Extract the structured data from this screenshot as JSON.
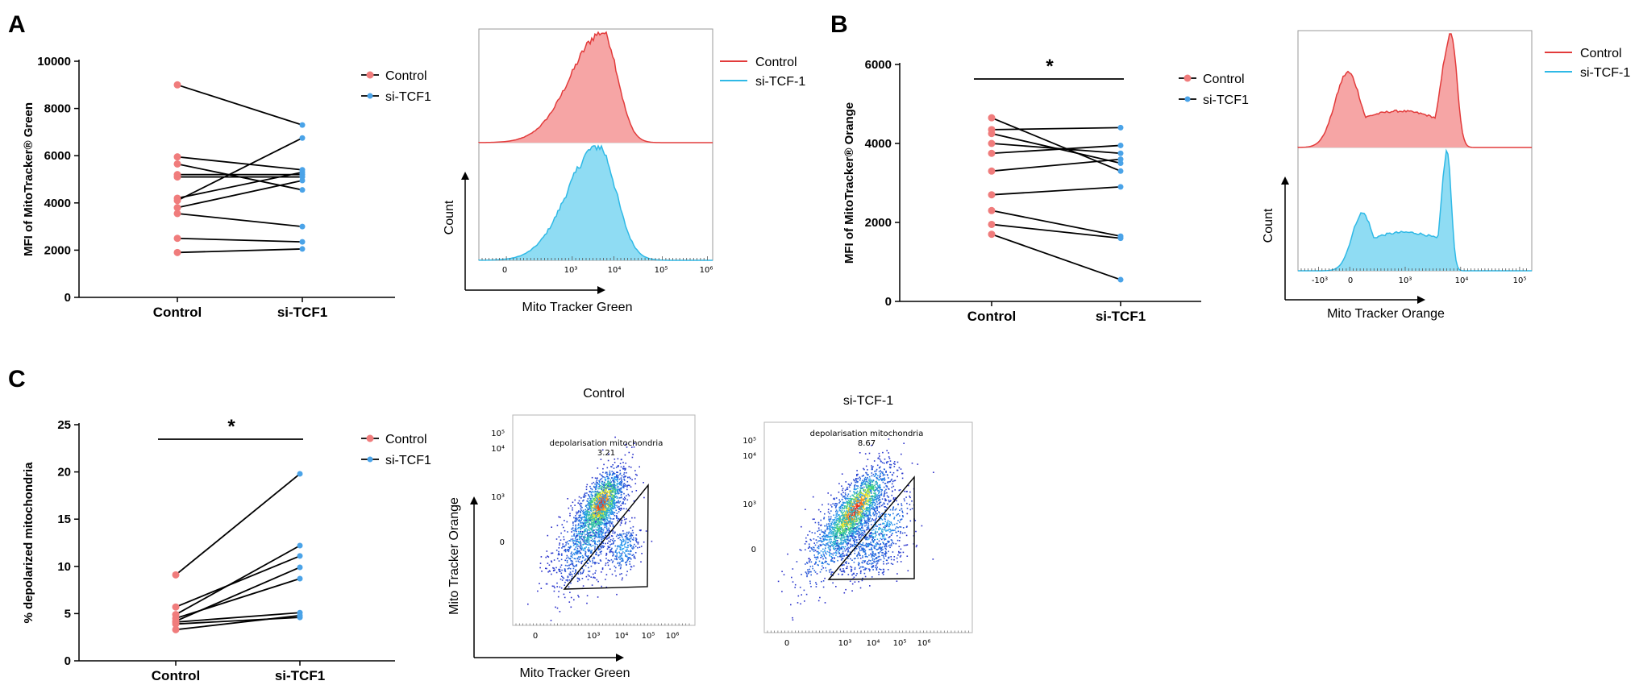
{
  "colors": {
    "control": "#f07c7c",
    "sitcf": "#4aa3e8",
    "hist_control_fill": "#f6a5a5",
    "hist_control_line": "#e23b3b",
    "hist_sitcf_fill": "#8fdcf3",
    "hist_sitcf_line": "#2fb9e6"
  },
  "panels": {
    "A": {
      "letter": "A"
    },
    "B": {
      "letter": "B"
    },
    "C": {
      "letter": "C"
    }
  },
  "chart_data": [
    {
      "id": "A_paired",
      "type": "line",
      "title": "",
      "ylabel": "MFI of MitoTracker® Green",
      "ylim": [
        0,
        10000
      ],
      "yticks": [
        "0",
        "2000",
        "4000",
        "6000",
        "8000",
        "10000"
      ],
      "yticks_values": [
        0,
        2000,
        4000,
        6000,
        8000,
        10000
      ],
      "categories": [
        "Control",
        "si-TCF1"
      ],
      "legend": [
        "Control",
        "si-TCF1"
      ],
      "significance": "",
      "pairs": [
        [
          9000,
          7300
        ],
        [
          5950,
          5400
        ],
        [
          5650,
          4550
        ],
        [
          5200,
          5200
        ],
        [
          5100,
          5100
        ],
        [
          4200,
          5300
        ],
        [
          4100,
          6750
        ],
        [
          3800,
          4950
        ],
        [
          3550,
          3000
        ],
        [
          2500,
          2350
        ],
        [
          1900,
          2050
        ]
      ]
    },
    {
      "id": "B_paired",
      "type": "line",
      "ylabel": "MFI of MitoTracker® Orange",
      "ylim": [
        0,
        6000
      ],
      "yticks": [
        "0",
        "2000",
        "4000",
        "6000"
      ],
      "yticks_values": [
        0,
        2000,
        4000,
        6000
      ],
      "categories": [
        "Control",
        "si-TCF1"
      ],
      "legend": [
        "Control",
        "si-TCF1"
      ],
      "significance": "*",
      "pairs": [
        [
          4650,
          3300
        ],
        [
          4350,
          4400
        ],
        [
          4250,
          3500
        ],
        [
          4000,
          3750
        ],
        [
          3750,
          3950
        ],
        [
          3300,
          3600
        ],
        [
          2700,
          2900
        ],
        [
          2300,
          1650
        ],
        [
          1950,
          1600
        ],
        [
          1700,
          550
        ]
      ]
    },
    {
      "id": "C_paired",
      "type": "line",
      "ylabel": "% depolarized mitochondria",
      "ylim": [
        0,
        25
      ],
      "yticks": [
        "0",
        "5",
        "10",
        "15",
        "20",
        "25"
      ],
      "yticks_values": [
        0,
        5,
        10,
        15,
        20,
        25
      ],
      "categories": [
        "Control",
        "si-TCF1"
      ],
      "legend": [
        "Control",
        "si-TCF1"
      ],
      "significance": "*",
      "pairs": [
        [
          9.1,
          19.8
        ],
        [
          5.7,
          11.1
        ],
        [
          4.9,
          12.2
        ],
        [
          4.5,
          8.7
        ],
        [
          4.2,
          9.9
        ],
        [
          4.1,
          5.1
        ],
        [
          3.9,
          4.6
        ],
        [
          3.3,
          4.8
        ]
      ]
    },
    {
      "id": "A_hist",
      "type": "area",
      "xlabel": "Mito Tracker Green",
      "ylabel": "Count",
      "xticks": [
        "0",
        "10³",
        "10⁴",
        "10⁵",
        "10⁶"
      ],
      "legend": [
        "Control",
        "si-TCF-1"
      ],
      "series": [
        {
          "name": "Control",
          "peak_log10": 3.7,
          "shape": "unimodal"
        },
        {
          "name": "si-TCF-1",
          "peak_log10": 3.6,
          "shape": "unimodal"
        }
      ]
    },
    {
      "id": "B_hist",
      "type": "area",
      "xlabel": "Mito Tracker Orange",
      "ylabel": "Count",
      "xticks": [
        "-10³",
        "0",
        "10³",
        "10⁴",
        "10⁵"
      ],
      "legend": [
        "Control",
        "si-TCF-1"
      ],
      "series": [
        {
          "name": "Control",
          "shape": "bimodal",
          "peaks": [
            "low",
            "high"
          ]
        },
        {
          "name": "si-TCF-1",
          "shape": "bimodal",
          "peaks": [
            "low",
            "high"
          ]
        }
      ]
    },
    {
      "id": "C_dot",
      "type": "scatter",
      "xlabel": "Mito Tracker Green",
      "ylabel": "Mito Tracker Orange",
      "plots": [
        {
          "title": "Control",
          "gate_label": "depolarisation mitochondria",
          "gate_value": "3.21"
        },
        {
          "title": "si-TCF-1",
          "gate_label": "depolarisation mitochondria",
          "gate_value": "8.67"
        }
      ],
      "xticks": [
        "0",
        "10³",
        "10⁴",
        "10⁵",
        "10⁶"
      ],
      "yticks": [
        "0",
        "10³",
        "10⁴",
        "10⁵"
      ]
    }
  ]
}
